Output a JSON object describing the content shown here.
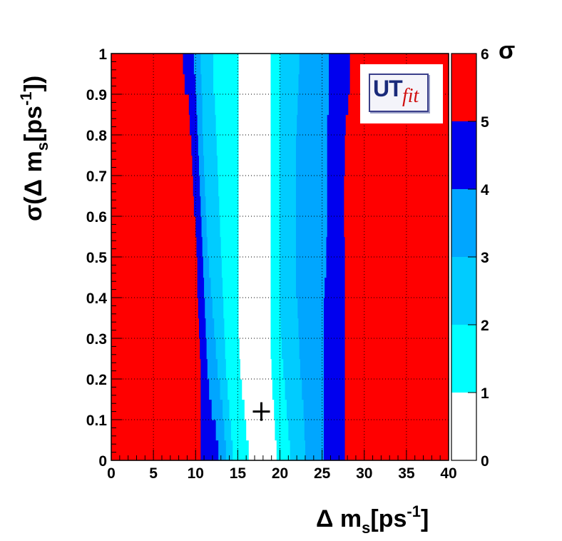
{
  "chart_data": {
    "type": "heatmap",
    "xlabel_main": "Δ m",
    "xlabel_sub": "s",
    "xlabel_unit": "[ps",
    "xlabel_exp": "-1",
    "xlabel_close": "]",
    "ylabel_pre": "σ(Δ m",
    "ylabel_sub": "s",
    "ylabel_unit": "[ps",
    "ylabel_exp": "-1",
    "ylabel_close": "])",
    "colorbar_label": "σ",
    "xlim": [
      0,
      40
    ],
    "ylim": [
      0,
      1
    ],
    "x_ticks": [
      "0",
      "5",
      "10",
      "15",
      "20",
      "25",
      "30",
      "35",
      "40"
    ],
    "y_ticks": [
      "0",
      "0.1",
      "0.2",
      "0.3",
      "0.4",
      "0.5",
      "0.6",
      "0.7",
      "0.8",
      "0.9",
      "1"
    ],
    "colorbar_ticks": [
      "0",
      "1",
      "2",
      "3",
      "4",
      "5",
      "6"
    ],
    "grid": true,
    "levels": [
      {
        "range": [
          0,
          1
        ],
        "color": "#ffffff"
      },
      {
        "range": [
          1,
          2
        ],
        "color": "#00ffff"
      },
      {
        "range": [
          2,
          3
        ],
        "color": "#00ccff"
      },
      {
        "range": [
          3,
          4
        ],
        "color": "#00a6ff"
      },
      {
        "range": [
          4,
          5
        ],
        "color": "#0000ee"
      },
      {
        "range": [
          5,
          6
        ],
        "color": "#ff0000"
      }
    ],
    "best_fit_marker": {
      "x": 17.8,
      "y": 0.12,
      "symbol": "+"
    },
    "contour_rows": [
      {
        "y": [
          0.0,
          0.05
        ],
        "edges": [
          10.6,
          12.7,
          13.6,
          14.4,
          16.3,
          19.6,
          21.2,
          23.0,
          25.2,
          27.7
        ]
      },
      {
        "y": [
          0.05,
          0.1
        ],
        "edges": [
          10.6,
          12.4,
          13.4,
          14.2,
          16.0,
          19.4,
          21.0,
          22.9,
          25.2,
          27.7
        ]
      },
      {
        "y": [
          0.1,
          0.15
        ],
        "edges": [
          10.6,
          11.9,
          13.2,
          14.0,
          15.8,
          19.3,
          20.8,
          22.8,
          25.2,
          27.7
        ]
      },
      {
        "y": [
          0.15,
          0.2
        ],
        "edges": [
          10.6,
          11.6,
          12.9,
          13.8,
          15.5,
          19.1,
          20.6,
          22.6,
          25.2,
          27.7
        ]
      },
      {
        "y": [
          0.2,
          0.25
        ],
        "edges": [
          10.6,
          11.4,
          12.6,
          13.6,
          15.3,
          19.0,
          20.4,
          22.4,
          25.2,
          27.7
        ]
      },
      {
        "y": [
          0.25,
          0.3
        ],
        "edges": [
          10.5,
          11.3,
          12.4,
          13.5,
          15.2,
          18.9,
          20.2,
          22.3,
          25.2,
          27.7
        ]
      },
      {
        "y": [
          0.3,
          0.35
        ],
        "edges": [
          10.4,
          11.2,
          12.2,
          13.4,
          15.1,
          18.9,
          20.1,
          22.2,
          25.2,
          27.7
        ]
      },
      {
        "y": [
          0.35,
          0.4
        ],
        "edges": [
          10.3,
          11.1,
          12.0,
          13.3,
          15.1,
          18.9,
          20.0,
          22.1,
          25.2,
          27.7
        ]
      },
      {
        "y": [
          0.4,
          0.45
        ],
        "edges": [
          10.2,
          11.0,
          11.8,
          13.2,
          15.1,
          18.9,
          20.0,
          21.9,
          25.3,
          27.7
        ]
      },
      {
        "y": [
          0.45,
          0.5
        ],
        "edges": [
          10.2,
          10.9,
          11.6,
          13.1,
          15.1,
          18.9,
          20.0,
          21.9,
          25.5,
          27.7
        ]
      },
      {
        "y": [
          0.5,
          0.55
        ],
        "edges": [
          10.1,
          10.8,
          11.4,
          13.0,
          15.1,
          18.9,
          20.0,
          21.9,
          25.5,
          27.7
        ]
      },
      {
        "y": [
          0.55,
          0.6
        ],
        "edges": [
          10.0,
          10.7,
          11.3,
          12.9,
          15.1,
          18.9,
          20.0,
          21.9,
          25.6,
          27.6
        ]
      },
      {
        "y": [
          0.6,
          0.65
        ],
        "edges": [
          9.8,
          10.6,
          11.2,
          12.8,
          15.1,
          18.9,
          20.0,
          21.9,
          25.6,
          27.6
        ]
      },
      {
        "y": [
          0.65,
          0.7
        ],
        "edges": [
          9.7,
          10.5,
          11.1,
          12.7,
          15.1,
          18.9,
          20.0,
          21.9,
          25.6,
          27.6
        ]
      },
      {
        "y": [
          0.7,
          0.75
        ],
        "edges": [
          9.6,
          10.4,
          11.0,
          12.6,
          15.1,
          18.9,
          20.0,
          21.9,
          25.6,
          27.7
        ]
      },
      {
        "y": [
          0.75,
          0.8
        ],
        "edges": [
          9.5,
          10.3,
          10.9,
          12.5,
          15.1,
          18.9,
          20.0,
          21.9,
          25.6,
          27.7
        ]
      },
      {
        "y": [
          0.8,
          0.85
        ],
        "edges": [
          9.3,
          10.2,
          10.8,
          12.4,
          15.1,
          18.9,
          20.0,
          22.0,
          25.6,
          27.8
        ]
      },
      {
        "y": [
          0.85,
          0.9
        ],
        "edges": [
          9.2,
          10.1,
          10.8,
          12.3,
          15.1,
          18.9,
          20.0,
          22.1,
          25.8,
          28.1
        ]
      },
      {
        "y": [
          0.9,
          0.95
        ],
        "edges": [
          8.7,
          10.0,
          10.7,
          12.1,
          15.1,
          18.9,
          20.0,
          22.2,
          25.8,
          28.3
        ]
      },
      {
        "y": [
          0.95,
          1.0
        ],
        "edges": [
          8.5,
          9.8,
          10.6,
          12.1,
          15.1,
          18.9,
          20.0,
          22.3,
          25.8,
          28.3
        ]
      }
    ]
  }
}
